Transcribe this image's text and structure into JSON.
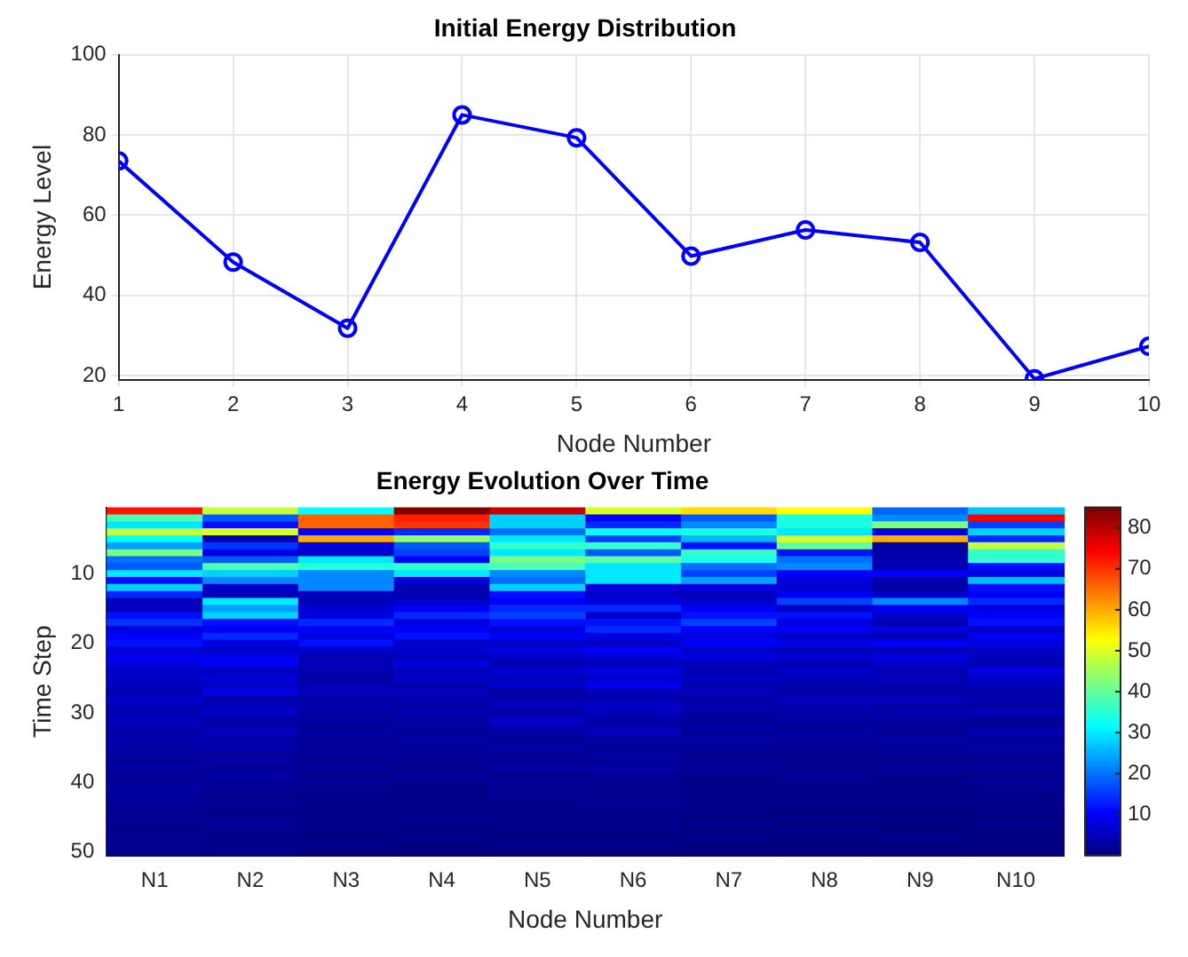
{
  "chart_data": [
    {
      "type": "line",
      "title": "Initial Energy Distribution",
      "xlabel": "Node Number",
      "ylabel": "Energy Level",
      "x": [
        1,
        2,
        3,
        4,
        5,
        6,
        7,
        8,
        9,
        10
      ],
      "series": [
        {
          "color": "#0000ff",
          "values": [
            73.5,
            48.3,
            31.8,
            85,
            79.3,
            49.8,
            56.3,
            53.2,
            19.2,
            27.3
          ]
        }
      ],
      "xlim": [
        1,
        10
      ],
      "xticks": [
        1,
        2,
        3,
        4,
        5,
        6,
        7,
        8,
        9,
        10
      ],
      "ylim": [
        19,
        100
      ],
      "yticks": [
        20,
        40,
        60,
        80,
        100
      ],
      "grid": true,
      "marker": "circle",
      "line_style": "solid"
    },
    {
      "type": "heatmap",
      "title": "Energy Evolution Over Time",
      "xlabel": "Node Number",
      "ylabel": "Time Step",
      "categories": [
        "N1",
        "N2",
        "N3",
        "N4",
        "N5",
        "N6",
        "N7",
        "N8",
        "N9",
        "N10"
      ],
      "ylim": [
        50.5,
        0.5
      ],
      "yticks": [
        10,
        20,
        30,
        40,
        50
      ],
      "clim": [
        0,
        85
      ],
      "cticks": [
        10,
        20,
        30,
        40,
        50,
        60,
        70,
        80
      ],
      "cells": [
        [
          73,
          48,
          32,
          85,
          79,
          50,
          56,
          53,
          19,
          27
        ],
        [
          38,
          18,
          66,
          72,
          28,
          10,
          18,
          34,
          22,
          75
        ],
        [
          30,
          12,
          66,
          70,
          28,
          14,
          22,
          34,
          42,
          16
        ],
        [
          48,
          50,
          10,
          14,
          20,
          32,
          34,
          30,
          8,
          28
        ],
        [
          32,
          4,
          60,
          44,
          30,
          16,
          26,
          50,
          60,
          14
        ],
        [
          24,
          15,
          8,
          18,
          36,
          36,
          12,
          40,
          3,
          48
        ],
        [
          42,
          8,
          6,
          16,
          30,
          18,
          36,
          12,
          3,
          36
        ],
        [
          20,
          18,
          30,
          10,
          42,
          40,
          34,
          20,
          4,
          36
        ],
        [
          18,
          38,
          35,
          36,
          38,
          30,
          20,
          22,
          4,
          12
        ],
        [
          30,
          28,
          22,
          30,
          22,
          30,
          16,
          10,
          10,
          8
        ],
        [
          12,
          22,
          22,
          8,
          20,
          30,
          24,
          8,
          4,
          26
        ],
        [
          28,
          6,
          22,
          4,
          28,
          8,
          8,
          6,
          3,
          12
        ],
        [
          14,
          5,
          5,
          4,
          12,
          6,
          5,
          10,
          6,
          10
        ],
        [
          5,
          30,
          5,
          6,
          10,
          8,
          6,
          16,
          22,
          14
        ],
        [
          5,
          24,
          7,
          10,
          14,
          14,
          10,
          6,
          10,
          8
        ],
        [
          12,
          28,
          8,
          14,
          16,
          6,
          12,
          12,
          6,
          10
        ],
        [
          15,
          12,
          14,
          8,
          12,
          12,
          16,
          8,
          4,
          12
        ],
        [
          8,
          10,
          10,
          10,
          8,
          14,
          10,
          10,
          8,
          6
        ],
        [
          10,
          14,
          8,
          12,
          10,
          8,
          8,
          6,
          4,
          10
        ],
        [
          12,
          8,
          12,
          6,
          6,
          6,
          10,
          8,
          10,
          8
        ],
        [
          7,
          6,
          6,
          7,
          8,
          10,
          6,
          5,
          5,
          6
        ],
        [
          9,
          9,
          4,
          5,
          6,
          7,
          8,
          7,
          8,
          5
        ],
        [
          8,
          10,
          5,
          8,
          4,
          5,
          5,
          4,
          6,
          4
        ],
        [
          6,
          5,
          4,
          5,
          7,
          8,
          4,
          6,
          4,
          8
        ],
        [
          6,
          7,
          3,
          6,
          5,
          6,
          6,
          5,
          5,
          6
        ],
        [
          5,
          6,
          4,
          4,
          6,
          9,
          4,
          4,
          4,
          5
        ],
        [
          4,
          8,
          5,
          5,
          3,
          5,
          5,
          3,
          3,
          3
        ],
        [
          6,
          4,
          3,
          4,
          4,
          4,
          3,
          5,
          5,
          4
        ],
        [
          5,
          5,
          4,
          3,
          5,
          6,
          4,
          4,
          3,
          3
        ],
        [
          4,
          6,
          3,
          4,
          3,
          5,
          3,
          3,
          4,
          5
        ],
        [
          5,
          3,
          3,
          3,
          6,
          3,
          2,
          3,
          3,
          2
        ],
        [
          4,
          4,
          2,
          3,
          4,
          4,
          3,
          2,
          2,
          3
        ],
        [
          3,
          5,
          3,
          2,
          3,
          5,
          2,
          3,
          2,
          4
        ],
        [
          4,
          3,
          2,
          3,
          2,
          3,
          3,
          2,
          3,
          2
        ],
        [
          3,
          4,
          2,
          2,
          3,
          2,
          2,
          2,
          2,
          3
        ],
        [
          3,
          2,
          2,
          2,
          2,
          3,
          1,
          1,
          2,
          2
        ],
        [
          2,
          3,
          1,
          2,
          2,
          2,
          2,
          2,
          1,
          1
        ],
        [
          3,
          2,
          2,
          1,
          3,
          3,
          2,
          1,
          2,
          2
        ],
        [
          2,
          3,
          1,
          2,
          1,
          2,
          1,
          2,
          1,
          1
        ],
        [
          2,
          2,
          2,
          1,
          2,
          1,
          1,
          1,
          1,
          2
        ],
        [
          3,
          2,
          1,
          1,
          1,
          2,
          1,
          1,
          1,
          1
        ],
        [
          2,
          1,
          1,
          1,
          2,
          1,
          1,
          1,
          1,
          1
        ],
        [
          2,
          2,
          1,
          1,
          1,
          2,
          1,
          1,
          1,
          1
        ],
        [
          1,
          1,
          1,
          1,
          1,
          1,
          1,
          0,
          0,
          1
        ],
        [
          2,
          1,
          1,
          1,
          1,
          1,
          0,
          1,
          1,
          0
        ],
        [
          1,
          2,
          1,
          1,
          1,
          1,
          1,
          0,
          0,
          1
        ],
        [
          1,
          1,
          1,
          0,
          1,
          1,
          0,
          1,
          0,
          0
        ],
        [
          2,
          1,
          0,
          1,
          0,
          0,
          1,
          0,
          1,
          0
        ],
        [
          1,
          1,
          1,
          0,
          1,
          1,
          0,
          0,
          0,
          0
        ],
        [
          1,
          1,
          0,
          0,
          0,
          0,
          0,
          0,
          0,
          0
        ]
      ]
    }
  ]
}
